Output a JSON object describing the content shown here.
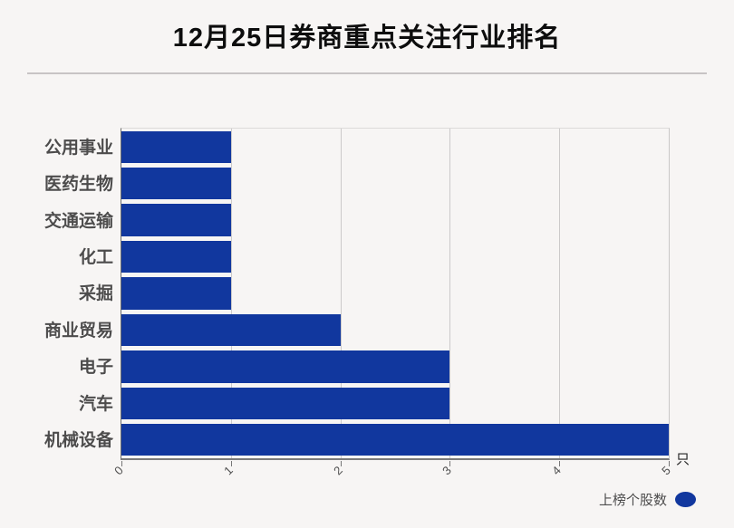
{
  "page": {
    "background": "#f7f5f4"
  },
  "header": {
    "title": "12月25日券商重点关注行业排名"
  },
  "chart_data": {
    "type": "bar",
    "orientation": "horizontal",
    "title": "12月25日券商重点关注行业排名",
    "categories": [
      "公用事业",
      "医药生物",
      "交通运输",
      "化工",
      "采掘",
      "商业贸易",
      "电子",
      "汽车",
      "机械设备"
    ],
    "values": [
      1,
      1,
      1,
      1,
      1,
      2,
      3,
      3,
      5
    ],
    "series_name": "上榜个股数",
    "xlabel": "",
    "ylabel": "",
    "x_unit": "只",
    "xlim": [
      0,
      5
    ],
    "xticks": [
      "0",
      "1",
      "2",
      "3",
      "4",
      "5"
    ],
    "xtick_rotation_deg": -45,
    "grid": true,
    "bar_color": "#11379e",
    "legend": {
      "label": "上榜个股数",
      "position": "bottom-right",
      "marker": "ellipse",
      "marker_color": "#11379e"
    }
  }
}
